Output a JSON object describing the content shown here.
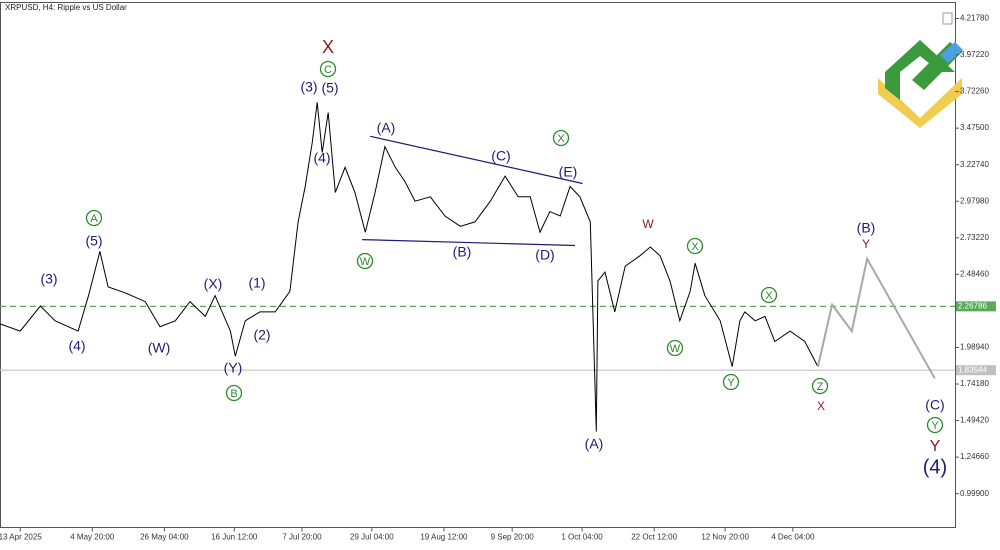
{
  "chart_data": {
    "type": "line",
    "title": "XRPUSD, H4:  Ripple vs US Dollar",
    "xlim": [
      -37,
      1712
    ],
    "ylim": [
      0.77,
      4.326
    ],
    "xticks": [
      {
        "value": 0,
        "label": "13 Apr 2025"
      },
      {
        "value": 132,
        "label": "4 May 20:00"
      },
      {
        "value": 264,
        "label": "26 May 04:00"
      },
      {
        "value": 392,
        "label": "16 Jun 12:00"
      },
      {
        "value": 516,
        "label": "7 Jul 20:00"
      },
      {
        "value": 644,
        "label": "29 Jul 04:00"
      },
      {
        "value": 776,
        "label": "19 Aug 12:00"
      },
      {
        "value": 901,
        "label": "9 Sep 20:00"
      },
      {
        "value": 1029,
        "label": "1 Oct 04:00"
      },
      {
        "value": 1161,
        "label": "22 Oct 12:00"
      },
      {
        "value": 1291,
        "label": "12 Nov 20:00"
      },
      {
        "value": 1415,
        "label": "4 Dec 04:00"
      }
    ],
    "yticks": [
      {
        "value": 4.2178,
        "label": "4.21780"
      },
      {
        "value": 3.9722,
        "label": "3.97220"
      },
      {
        "value": 3.7226,
        "label": "3.72260"
      },
      {
        "value": 3.475,
        "label": "3.47500"
      },
      {
        "value": 3.2274,
        "label": "3.22740"
      },
      {
        "value": 2.9798,
        "label": "2.97980"
      },
      {
        "value": 2.7322,
        "label": "2.73220"
      },
      {
        "value": 2.4846,
        "label": "2.48460"
      },
      {
        "value": 1.9894,
        "label": "1.98940"
      },
      {
        "value": 1.7418,
        "label": "1.74180"
      },
      {
        "value": 1.4942,
        "label": "1.49420"
      },
      {
        "value": 1.2466,
        "label": "1.24660"
      },
      {
        "value": 0.999,
        "label": "0.99900"
      }
    ],
    "series": [
      {
        "color": "#000000",
        "x": [
          -37,
          0,
          37,
          64,
          106,
          125,
          146,
          161,
          192,
          229,
          256,
          284,
          311,
          339,
          357,
          385,
          394,
          412,
          439,
          467,
          494,
          509,
          522,
          535,
          544,
          553,
          564,
          577,
          595,
          613,
          632,
          650,
          668,
          687,
          705,
          723,
          751,
          778,
          806,
          833,
          861,
          888,
          912,
          934,
          952,
          970,
          989,
          1007,
          1025,
          1044,
          1055,
          1058,
          1071,
          1089,
          1108,
          1135,
          1154,
          1172,
          1190,
          1208,
          1227,
          1236,
          1254,
          1282,
          1304,
          1318,
          1327,
          1346,
          1364,
          1382,
          1410,
          1437,
          1461
        ],
        "values": [
          2.15,
          2.1,
          2.27,
          2.17,
          2.1,
          2.34,
          2.64,
          2.4,
          2.36,
          2.3,
          2.13,
          2.17,
          2.3,
          2.2,
          2.34,
          2.1,
          1.93,
          2.17,
          2.23,
          2.23,
          2.37,
          2.84,
          3.08,
          3.38,
          3.65,
          3.31,
          3.58,
          3.04,
          3.21,
          3.04,
          2.77,
          3.04,
          3.35,
          3.21,
          3.11,
          2.98,
          3.01,
          2.88,
          2.81,
          2.84,
          2.98,
          3.15,
          3.01,
          3.01,
          2.77,
          2.91,
          2.88,
          3.08,
          3.01,
          2.84,
          1.42,
          2.44,
          2.5,
          2.23,
          2.54,
          2.61,
          2.67,
          2.61,
          2.44,
          2.17,
          2.37,
          2.56,
          2.34,
          2.17,
          1.86,
          2.17,
          2.23,
          2.17,
          2.2,
          2.03,
          2.1,
          2.03,
          1.86
        ]
      },
      {
        "color": "#a8a8a8",
        "x": [
          1461,
          1487,
          1523,
          1551,
          1675
        ],
        "values": [
          1.86,
          2.28,
          2.1,
          2.59,
          1.78
        ]
      }
    ],
    "hlines": [
      {
        "value": 2.26786,
        "color": "#5aaa5a",
        "dashed": true
      },
      {
        "value": 1.83544,
        "color": "#c0c0c0",
        "dashed": false
      }
    ],
    "trendlines": [
      {
        "color": "#1c1c7a",
        "x": [
          641,
          1030
        ],
        "values": [
          3.42,
          3.1
        ]
      },
      {
        "color": "#1c1c7a",
        "x": [
          626,
          1016
        ],
        "values": [
          2.72,
          2.68
        ]
      }
    ],
    "annotations": [
      {
        "text": "(3)",
        "color": "#1c1c7a"
      },
      {
        "text": "(4)",
        "color": "#1c1c7a"
      },
      {
        "text": "(5)",
        "color": "#1c1c7a"
      },
      {
        "text": "A",
        "color": "#2a8a2a",
        "circle": true
      },
      {
        "text": "(W)",
        "color": "#1c1c7a"
      },
      {
        "text": "(X)",
        "color": "#1c1c7a"
      },
      {
        "text": "(1)",
        "color": "#1c1c7a"
      },
      {
        "text": "(2)",
        "color": "#1c1c7a"
      },
      {
        "text": "(Y)",
        "color": "#1c1c7a"
      },
      {
        "text": "B",
        "color": "#2a8a2a",
        "circle": true
      },
      {
        "text": "(3)",
        "color": "#1c1c7a"
      },
      {
        "text": "(5)",
        "color": "#1c1c7a"
      },
      {
        "text": "(4)",
        "color": "#1c1c7a"
      },
      {
        "text": "C",
        "color": "#2a8a2a",
        "circle": true
      },
      {
        "text": "X",
        "color": "#8b1a1a"
      },
      {
        "text": "(A)",
        "color": "#1c1c7a"
      },
      {
        "text": "W",
        "color": "#2a8a2a",
        "circle": true
      },
      {
        "text": "(B)",
        "color": "#1c1c7a"
      },
      {
        "text": "(C)",
        "color": "#1c1c7a"
      },
      {
        "text": "X",
        "color": "#2a8a2a",
        "circle": true
      },
      {
        "text": "(E)",
        "color": "#1c1c7a"
      },
      {
        "text": "(D)",
        "color": "#1c1c7a"
      },
      {
        "text": "(A)",
        "color": "#1c1c7a"
      },
      {
        "text": "W",
        "color": "#8b1a1a"
      },
      {
        "text": "X",
        "color": "#2a8a2a",
        "circle": true
      },
      {
        "text": "W",
        "color": "#2a8a2a",
        "circle": true
      },
      {
        "text": "X",
        "color": "#2a8a2a",
        "circle": true
      },
      {
        "text": "Y",
        "color": "#2a8a2a",
        "circle": true
      },
      {
        "text": "Z",
        "color": "#2a8a2a",
        "circle": true
      },
      {
        "text": "X",
        "color": "#8b1a1a"
      },
      {
        "text": "(B)",
        "color": "#1c1c7a"
      },
      {
        "text": "Y",
        "color": "#8b1a1a"
      },
      {
        "text": "(C)",
        "color": "#1c1c7a"
      },
      {
        "text": "Y",
        "color": "#2a8a2a",
        "circle": true
      },
      {
        "text": "Y",
        "color": "#8b1a1a"
      },
      {
        "text": "(4)",
        "color": "#1c1c7a"
      }
    ]
  }
}
